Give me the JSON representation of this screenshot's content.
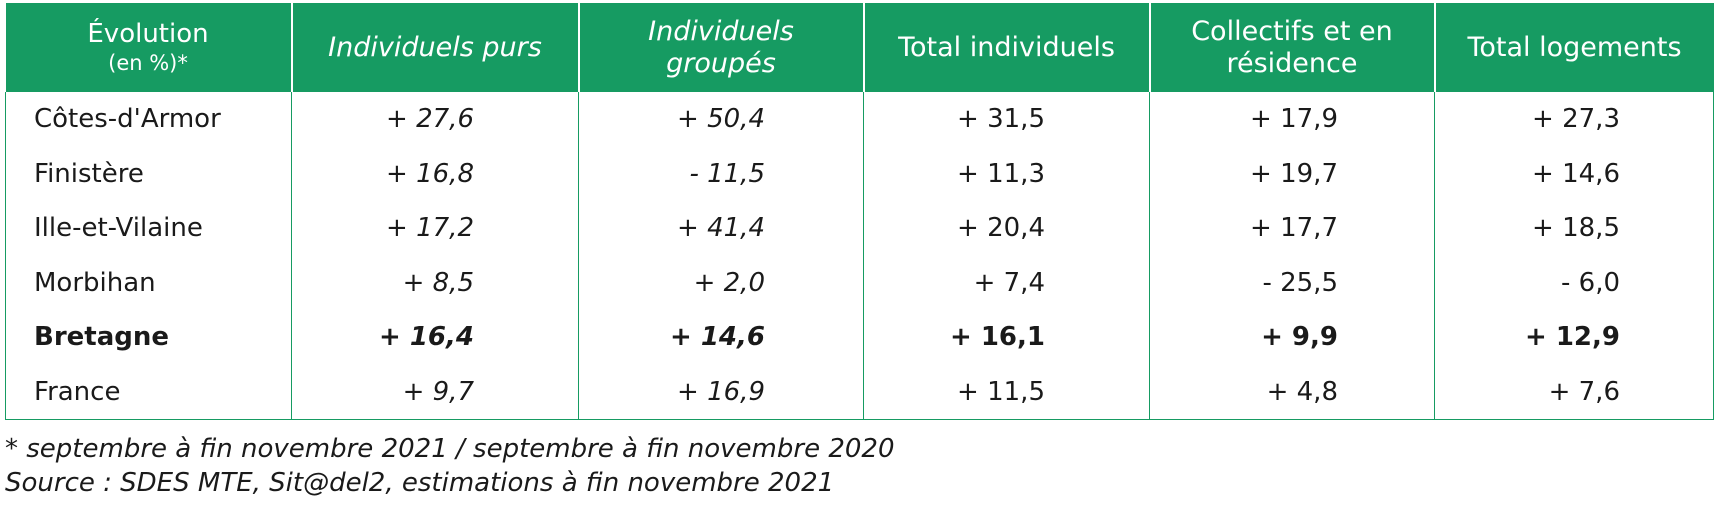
{
  "table": {
    "headers": [
      {
        "line1": "Évolution",
        "line2": "(en %)*"
      },
      {
        "label": "Individuels purs"
      },
      {
        "line1": "Individuels",
        "line2": "groupés"
      },
      {
        "label": "Total individuels"
      },
      {
        "line1": "Collectifs et en",
        "line2": "résidence"
      },
      {
        "label": "Total logements"
      }
    ],
    "rows": [
      {
        "name": "Côtes-d'Armor",
        "v": [
          "+ 27,6",
          "+ 50,4",
          "+ 31,5",
          "+ 17,9",
          "+ 27,3"
        ]
      },
      {
        "name": "Finistère",
        "v": [
          "+ 16,8",
          "- 11,5",
          "+ 11,3",
          "+ 19,7",
          "+ 14,6"
        ]
      },
      {
        "name": "Ille-et-Vilaine",
        "v": [
          "+ 17,2",
          "+ 41,4",
          "+ 20,4",
          "+ 17,7",
          "+ 18,5"
        ]
      },
      {
        "name": "Morbihan",
        "v": [
          "+ 8,5",
          "+ 2,0",
          "+ 7,4",
          "- 25,5",
          "- 6,0"
        ]
      },
      {
        "name": "Bretagne",
        "v": [
          "+ 16,4",
          "+ 14,6",
          "+ 16,1",
          "+ 9,9",
          "+ 12,9"
        ]
      },
      {
        "name": "France",
        "v": [
          "+ 9,7",
          "+ 16,9",
          "+ 11,5",
          "+ 4,8",
          "+ 7,6"
        ]
      }
    ]
  },
  "notes": {
    "footnote": "* septembre à fin novembre 2021 / septembre à fin novembre 2020",
    "source": "Source : SDES MTE, Sit@del2, estimations à fin novembre 2021"
  },
  "colors": {
    "header_bg": "#169b62",
    "header_text": "#ffffff",
    "border": "#169b62"
  }
}
